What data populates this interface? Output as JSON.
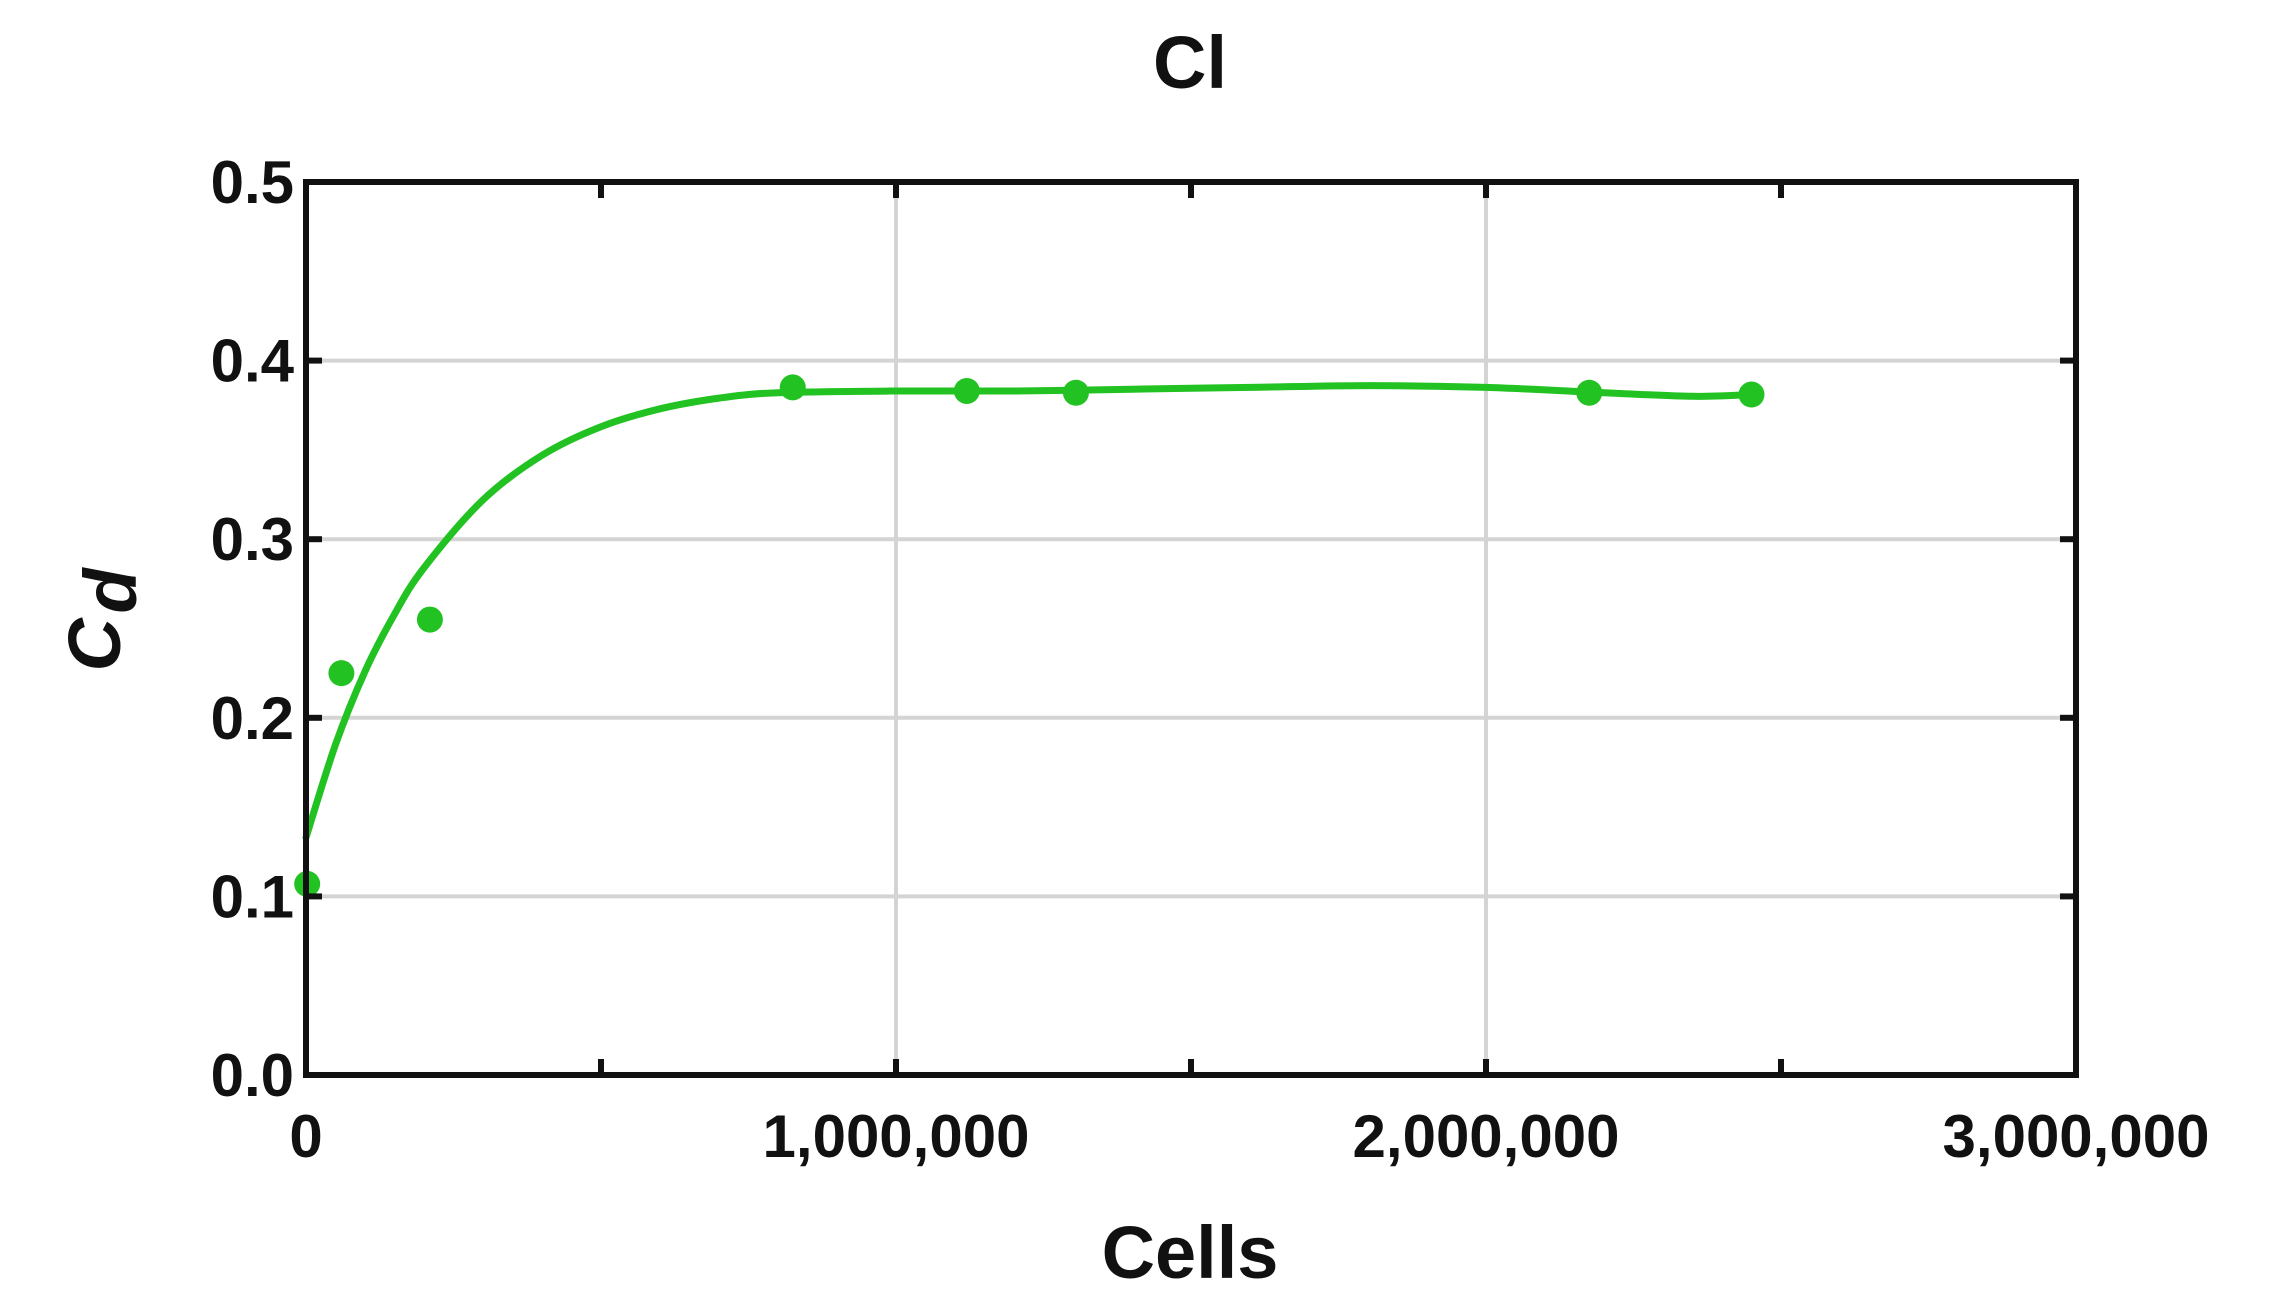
{
  "chart_data": {
    "type": "scatter",
    "title": "Cl",
    "xlabel": "Cells",
    "ylabel_main": "C",
    "ylabel_sub": "d",
    "xlim": [
      0,
      3000000
    ],
    "ylim": [
      0,
      0.5
    ],
    "xticks": [
      0,
      500000,
      1000000,
      1500000,
      2000000,
      2500000,
      3000000
    ],
    "xtick_labels": [
      "0",
      "",
      "1,000,000",
      "",
      "2,000,000",
      "",
      "3,000,000"
    ],
    "yticks": [
      0,
      0.1,
      0.2,
      0.3,
      0.4,
      0.5
    ],
    "ytick_labels": [
      "0.0",
      "0.1",
      "0.2",
      "0.3",
      "0.4",
      "0.5"
    ],
    "grid": true,
    "color": "#22c222",
    "points": [
      {
        "x": 2000,
        "y": 0.107
      },
      {
        "x": 60000,
        "y": 0.225
      },
      {
        "x": 210000,
        "y": 0.255
      },
      {
        "x": 825000,
        "y": 0.385
      },
      {
        "x": 1120000,
        "y": 0.383
      },
      {
        "x": 1305000,
        "y": 0.382
      },
      {
        "x": 2175000,
        "y": 0.382
      },
      {
        "x": 2450000,
        "y": 0.381
      }
    ],
    "fit_curve": [
      {
        "x": 0,
        "y": 0.133
      },
      {
        "x": 50000,
        "y": 0.185
      },
      {
        "x": 100000,
        "y": 0.226
      },
      {
        "x": 150000,
        "y": 0.258
      },
      {
        "x": 200000,
        "y": 0.284
      },
      {
        "x": 300000,
        "y": 0.322
      },
      {
        "x": 400000,
        "y": 0.347
      },
      {
        "x": 500000,
        "y": 0.363
      },
      {
        "x": 600000,
        "y": 0.373
      },
      {
        "x": 700000,
        "y": 0.379
      },
      {
        "x": 800000,
        "y": 0.382
      },
      {
        "x": 1000000,
        "y": 0.383
      },
      {
        "x": 1200000,
        "y": 0.383
      },
      {
        "x": 1400000,
        "y": 0.384
      },
      {
        "x": 1600000,
        "y": 0.385
      },
      {
        "x": 1800000,
        "y": 0.386
      },
      {
        "x": 2000000,
        "y": 0.385
      },
      {
        "x": 2200000,
        "y": 0.382
      },
      {
        "x": 2350000,
        "y": 0.38
      },
      {
        "x": 2450000,
        "y": 0.381
      }
    ]
  }
}
